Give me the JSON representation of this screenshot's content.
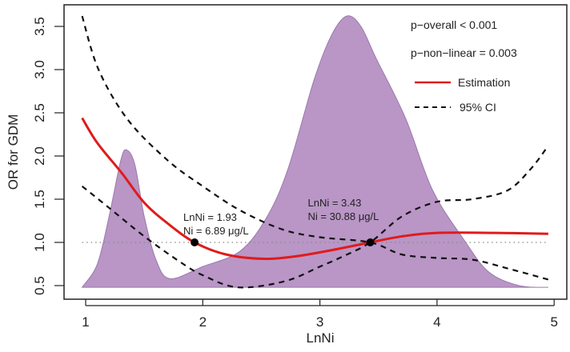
{
  "chart_data": {
    "type": "line",
    "xlabel": "LnNi",
    "ylabel": "OR for GDM",
    "xlim": [
      0.8,
      5.1
    ],
    "ylim": [
      0.4,
      3.68
    ],
    "x_ticks": [
      "1",
      "2",
      "3",
      "4",
      "5"
    ],
    "x_tick_values": [
      1,
      2,
      3,
      4,
      5
    ],
    "y_ticks": [
      "0.5",
      "1.0",
      "1.5",
      "2.0",
      "2.5",
      "3.0",
      "3.5"
    ],
    "y_tick_values": [
      0.5,
      1.0,
      1.5,
      2.0,
      2.5,
      3.0,
      3.5
    ],
    "reference_line": 1.0,
    "colors": {
      "density": "#b996c6",
      "density_edge": "#9a78ad",
      "estimation": "#e01b1b",
      "ci": "#111111",
      "reference": "#888888"
    },
    "density": {
      "baseline": 0.48,
      "x": [
        0.97,
        1.1,
        1.2,
        1.3,
        1.35,
        1.42,
        1.5,
        1.6,
        1.72,
        2.0,
        2.32,
        2.55,
        2.73,
        2.95,
        3.1,
        3.23,
        3.35,
        3.48,
        3.73,
        3.96,
        4.23,
        4.44,
        4.7,
        4.95
      ],
      "y": [
        0.48,
        0.75,
        1.3,
        1.95,
        2.07,
        1.9,
        1.3,
        0.8,
        0.58,
        0.72,
        0.9,
        1.3,
        1.86,
        2.88,
        3.4,
        3.62,
        3.5,
        3.13,
        2.44,
        1.61,
        1.03,
        0.66,
        0.5,
        0.48
      ]
    },
    "series": [
      {
        "name": "Estimation",
        "style": "solid",
        "x": [
          0.97,
          1.1,
          1.31,
          1.5,
          1.7,
          1.93,
          2.2,
          2.52,
          2.8,
          3.1,
          3.43,
          3.7,
          4.0,
          4.5,
          4.95
        ],
        "y": [
          2.44,
          2.15,
          1.8,
          1.46,
          1.22,
          1.0,
          0.86,
          0.81,
          0.84,
          0.91,
          1.0,
          1.07,
          1.11,
          1.11,
          1.1
        ]
      },
      {
        "name": "95% CI upper",
        "style": "dashed",
        "x": [
          0.97,
          1.11,
          1.36,
          1.7,
          2.0,
          2.32,
          2.68,
          3.0,
          3.43,
          3.7,
          4.0,
          4.3,
          4.6,
          4.95
        ],
        "y": [
          3.62,
          3.0,
          2.42,
          1.95,
          1.65,
          1.37,
          1.15,
          1.06,
          1.0,
          0.86,
          0.82,
          0.8,
          0.7,
          0.57
        ]
      },
      {
        "name": "95% CI lower",
        "style": "dashed",
        "x": [
          0.97,
          1.2,
          1.5,
          1.8,
          2.0,
          2.3,
          2.7,
          3.0,
          3.2,
          3.43,
          3.7,
          4.0,
          4.3,
          4.6,
          4.8,
          4.95
        ],
        "y": [
          1.65,
          1.4,
          1.07,
          0.78,
          0.62,
          0.48,
          0.55,
          0.72,
          0.84,
          1.0,
          1.3,
          1.47,
          1.5,
          1.6,
          1.85,
          2.12
        ]
      }
    ],
    "points": [
      {
        "x": 1.93,
        "y": 1.0,
        "label1": "LnNi = 1.93",
        "label2": "Ni = 6.89 μg/L"
      },
      {
        "x": 3.43,
        "y": 1.0,
        "label1": "LnNi = 3.43",
        "label2": "Ni = 30.88 μg/L"
      }
    ],
    "annotations": {
      "p_overall": "p−overall < 0.001",
      "p_nonlinear": "p−non−linear = 0.003"
    },
    "legend": {
      "position": "top-right",
      "entries": [
        "Estimation",
        "95% CI"
      ]
    }
  }
}
